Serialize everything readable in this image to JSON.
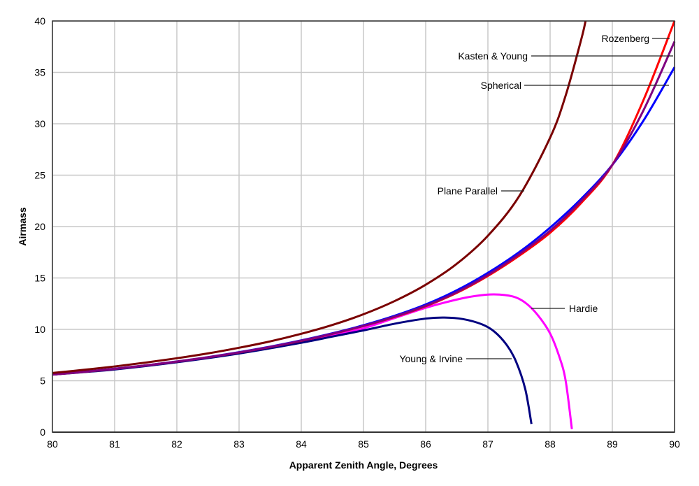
{
  "chart_data": {
    "type": "line",
    "title": "",
    "xlabel": "Apparent Zenith Angle, Degrees",
    "ylabel": "Airmass",
    "xlim": [
      80,
      90
    ],
    "ylim": [
      0,
      40
    ],
    "xticks": [
      80,
      81,
      82,
      83,
      84,
      85,
      86,
      87,
      88,
      89,
      90
    ],
    "yticks": [
      0,
      5,
      10,
      15,
      20,
      25,
      30,
      35,
      40
    ],
    "grid": true,
    "series": [
      {
        "name": "Plane Parallel",
        "color": "#7a0000",
        "x": [
          80,
          80.5,
          81,
          81.5,
          82,
          82.5,
          83,
          83.5,
          84,
          84.5,
          85,
          85.5,
          86,
          86.5,
          87,
          87.5,
          88,
          88.25,
          88.5,
          88.57
        ],
        "y": [
          5.76,
          6.06,
          6.39,
          6.77,
          7.19,
          7.66,
          8.21,
          8.83,
          9.57,
          10.43,
          11.47,
          12.75,
          14.34,
          16.38,
          19.11,
          22.93,
          28.65,
          32.75,
          38.2,
          40
        ]
      },
      {
        "name": "Spherical",
        "color": "#0000ff",
        "x": [
          80,
          80.5,
          81,
          81.5,
          82,
          82.5,
          83,
          83.5,
          84,
          84.5,
          85,
          85.5,
          86,
          86.5,
          87,
          87.5,
          88,
          88.5,
          89,
          89.5,
          90
        ],
        "y": [
          5.6,
          5.87,
          6.17,
          6.5,
          6.88,
          7.3,
          7.78,
          8.32,
          8.93,
          9.62,
          10.4,
          11.32,
          12.42,
          13.8,
          15.5,
          17.5,
          19.9,
          22.7,
          26.0,
          30.3,
          35.5
        ]
      },
      {
        "name": "Kasten & Young",
        "color": "#800080",
        "x": [
          80,
          80.5,
          81,
          81.5,
          82,
          82.5,
          83,
          83.5,
          84,
          84.5,
          85,
          85.5,
          86,
          86.5,
          87,
          87.5,
          88,
          88.5,
          89,
          89.5,
          90
        ],
        "y": [
          5.6,
          5.86,
          6.16,
          6.49,
          6.86,
          7.28,
          7.76,
          8.29,
          8.9,
          9.58,
          10.34,
          11.24,
          12.3,
          13.62,
          15.3,
          17.3,
          19.6,
          22.5,
          26.0,
          31.3,
          38.0
        ]
      },
      {
        "name": "Rozenberg",
        "color": "#ff0000",
        "x": [
          80,
          80.5,
          81,
          81.5,
          82,
          82.5,
          83,
          83.5,
          84,
          84.5,
          85,
          85.5,
          86,
          86.5,
          87,
          87.5,
          88,
          88.5,
          89,
          89.5,
          90
        ],
        "y": [
          5.6,
          5.86,
          6.16,
          6.49,
          6.86,
          7.28,
          7.75,
          8.28,
          8.88,
          9.56,
          10.32,
          11.2,
          12.25,
          13.55,
          15.2,
          17.15,
          19.4,
          22.3,
          26.0,
          32.3,
          40.0
        ]
      },
      {
        "name": "Hardie",
        "color": "#ff00ff",
        "x": [
          80,
          81,
          82,
          83,
          84,
          84.5,
          85,
          85.5,
          86,
          86.5,
          86.8,
          87.1,
          87.4,
          87.6,
          87.8,
          88,
          88.15,
          88.25,
          88.35
        ],
        "y": [
          5.6,
          6.15,
          6.85,
          7.72,
          8.75,
          9.4,
          10.1,
          11.1,
          12.1,
          12.9,
          13.25,
          13.4,
          13.2,
          12.6,
          11.4,
          9.6,
          7.3,
          5.0,
          0.3
        ]
      },
      {
        "name": "Young & Irvine",
        "color": "#000080",
        "x": [
          80,
          81,
          82,
          83,
          84,
          84.5,
          85,
          85.5,
          86,
          86.3,
          86.6,
          86.9,
          87.1,
          87.3,
          87.45,
          87.6,
          87.7
        ],
        "y": [
          5.6,
          6.1,
          6.8,
          7.65,
          8.7,
          9.3,
          9.9,
          10.55,
          11.05,
          11.15,
          11.0,
          10.5,
          9.8,
          8.5,
          6.9,
          4.2,
          0.8
        ]
      }
    ]
  }
}
